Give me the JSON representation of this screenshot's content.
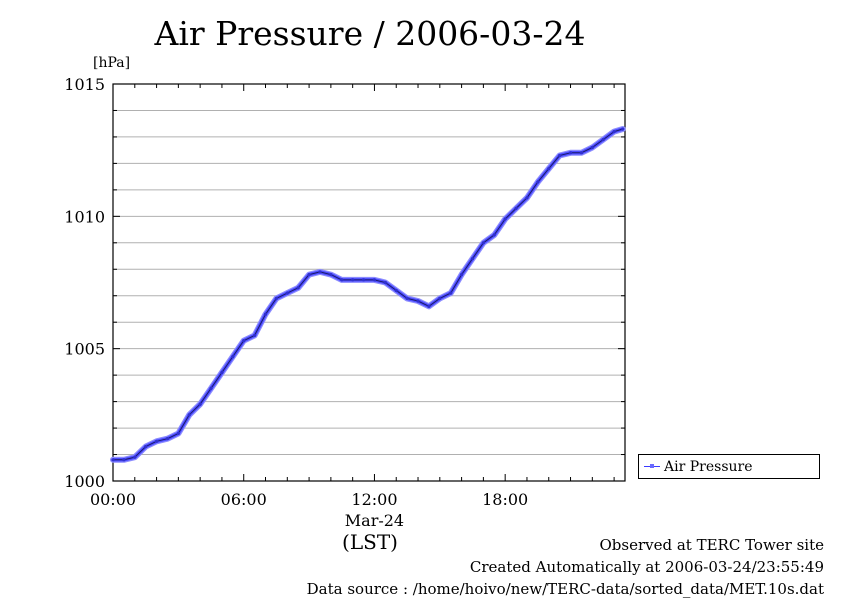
{
  "chart_data": {
    "type": "line",
    "title": "Air Pressure / 2006-03-24",
    "ylabel": "[hPa]",
    "xlabel": "(LST)",
    "date_label": "Mar-24",
    "ylim": [
      1000,
      1015
    ],
    "xlim": [
      0,
      23.5
    ],
    "y_ticks": [
      1000,
      1005,
      1010,
      1015
    ],
    "x_ticks": [
      {
        "value": 0,
        "label": "00:00"
      },
      {
        "value": 6,
        "label": "06:00"
      },
      {
        "value": 12,
        "label": "12:00"
      },
      {
        "value": 18,
        "label": "18:00"
      }
    ],
    "grid": true,
    "legend": "right-bottom",
    "series": [
      {
        "name": "Air Pressure",
        "color": "#4b4bff",
        "x": [
          0,
          0.5,
          1,
          1.5,
          2,
          2.5,
          3,
          3.5,
          4,
          4.5,
          5,
          5.5,
          6,
          6.5,
          7,
          7.5,
          8,
          8.5,
          9,
          9.5,
          10,
          10.5,
          11,
          11.5,
          12,
          12.5,
          13,
          13.5,
          14,
          14.5,
          15,
          15.5,
          16,
          16.5,
          17,
          17.5,
          18,
          18.5,
          19,
          19.5,
          20,
          20.5,
          21,
          21.5,
          22,
          22.5,
          23,
          23.4
        ],
        "values": [
          1000.8,
          1000.8,
          1000.9,
          1001.3,
          1001.5,
          1001.6,
          1001.8,
          1002.5,
          1002.9,
          1003.5,
          1004.1,
          1004.7,
          1005.3,
          1005.5,
          1006.3,
          1006.9,
          1007.1,
          1007.3,
          1007.8,
          1007.9,
          1007.8,
          1007.6,
          1007.6,
          1007.6,
          1007.6,
          1007.5,
          1007.2,
          1006.9,
          1006.8,
          1006.6,
          1006.9,
          1007.1,
          1007.8,
          1008.4,
          1009.0,
          1009.3,
          1009.9,
          1010.3,
          1010.7,
          1011.3,
          1011.8,
          1012.3,
          1012.4,
          1012.4,
          1012.6,
          1012.9,
          1013.2,
          1013.3
        ]
      }
    ]
  },
  "footer": {
    "observed": "Observed at TERC Tower site",
    "created": "Created Automatically at 2006-03-24/23:55:49",
    "source": "Data source : /home/hoivo/new/TERC-data/sorted_data/MET.10s.dat"
  }
}
